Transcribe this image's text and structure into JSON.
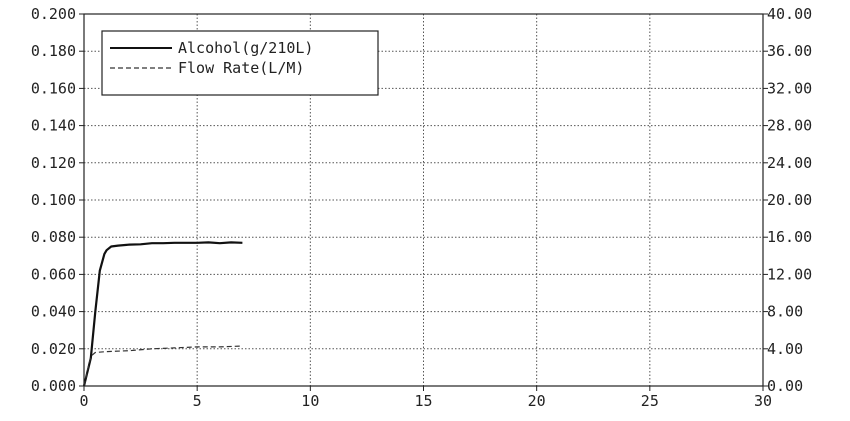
{
  "chart_data": {
    "type": "line",
    "grid": true,
    "legend_position": "top-left",
    "x_axis": {
      "range": [
        0,
        30
      ],
      "ticks": [
        0,
        5,
        10,
        15,
        20,
        25,
        30
      ],
      "tick_labels": [
        "0",
        "5",
        "10",
        "15",
        "20",
        "25",
        "30"
      ]
    },
    "y_left": {
      "range": [
        0,
        0.2
      ],
      "ticks": [
        0,
        0.02,
        0.04,
        0.06,
        0.08,
        0.1,
        0.12,
        0.14,
        0.16,
        0.18,
        0.2
      ],
      "tick_labels": [
        "0.000",
        "0.020",
        "0.040",
        "0.060",
        "0.080",
        "0.100",
        "0.120",
        "0.140",
        "0.160",
        "0.180",
        "0.200"
      ]
    },
    "y_right": {
      "range": [
        0,
        40
      ],
      "ticks": [
        0,
        4,
        8,
        12,
        16,
        20,
        24,
        28,
        32,
        36,
        40
      ],
      "tick_labels": [
        "0.00",
        "4.00",
        "8.00",
        "12.00",
        "16.00",
        "20.00",
        "24.00",
        "28.00",
        "32.00",
        "36.00",
        "40.00"
      ]
    },
    "series": [
      {
        "name": "Alcohol(g/210L)",
        "axis": "left",
        "style": "solid",
        "color": "#111111",
        "x": [
          0,
          0.3,
          0.5,
          0.7,
          0.9,
          1.0,
          1.2,
          1.5,
          2.0,
          2.5,
          3.0,
          3.5,
          4.0,
          4.5,
          5.0,
          5.5,
          6.0,
          6.5,
          7.0
        ],
        "y": [
          0.0,
          0.015,
          0.04,
          0.062,
          0.071,
          0.073,
          0.075,
          0.0755,
          0.076,
          0.0762,
          0.0768,
          0.0768,
          0.077,
          0.077,
          0.077,
          0.0772,
          0.0768,
          0.0772,
          0.077
        ]
      },
      {
        "name": "Flow Rate(L/M)",
        "axis": "right",
        "style": "dashed",
        "color": "#333333",
        "x": [
          0,
          0.3,
          0.5,
          1.0,
          2.0,
          3.0,
          4.0,
          5.0,
          6.0,
          7.0
        ],
        "y": [
          0.0,
          3.2,
          3.6,
          3.7,
          3.8,
          4.0,
          4.1,
          4.2,
          4.2,
          4.3
        ]
      }
    ]
  }
}
